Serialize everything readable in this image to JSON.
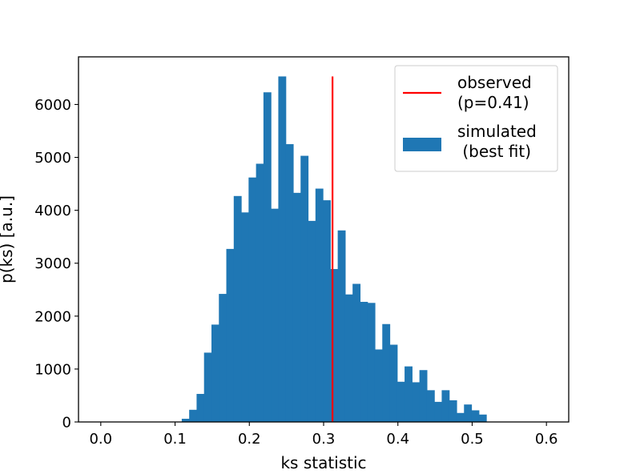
{
  "chart_data": {
    "type": "bar",
    "xlabel": "ks statistic",
    "ylabel": "p(ks) [a.u.]",
    "xlim": [
      -0.03,
      0.63
    ],
    "ylim": [
      0,
      6900
    ],
    "xticks": [
      0.0,
      0.1,
      0.2,
      0.3,
      0.4,
      0.5,
      0.6
    ],
    "xtick_labels": [
      "0.0",
      "0.1",
      "0.2",
      "0.3",
      "0.4",
      "0.5",
      "0.6"
    ],
    "yticks": [
      0,
      1000,
      2000,
      3000,
      4000,
      5000,
      6000
    ],
    "ytick_labels": [
      "0",
      "1000",
      "2000",
      "3000",
      "4000",
      "5000",
      "6000"
    ],
    "grid": false,
    "legend_position": "top-right",
    "series": [
      {
        "name": "simulated\n (best fit)",
        "kind": "histogram",
        "color": "#1f77b4",
        "bin_start": 0.109,
        "bin_width": 0.01,
        "values": [
          60,
          230,
          530,
          1310,
          1840,
          2420,
          3270,
          4270,
          3960,
          4620,
          4880,
          6230,
          4030,
          6530,
          5250,
          4330,
          5030,
          3800,
          4410,
          4190,
          2890,
          3620,
          2410,
          2610,
          2270,
          2250,
          1370,
          1850,
          1460,
          760,
          1050,
          750,
          980,
          600,
          380,
          600,
          410,
          170,
          330,
          220,
          140
        ]
      },
      {
        "name": "observed\n(p=0.41)",
        "kind": "vline",
        "color": "#ff0000",
        "x": 0.312,
        "y_top": 6530
      }
    ]
  }
}
